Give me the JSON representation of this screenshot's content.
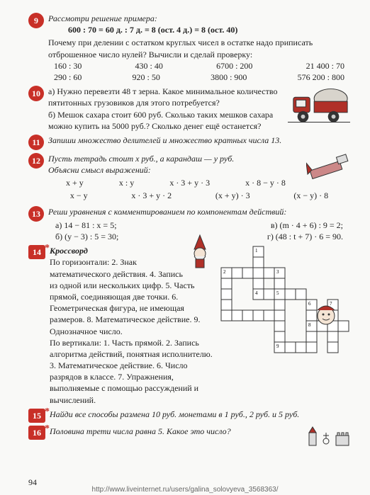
{
  "colors": {
    "badge": "#c83028",
    "ink": "#222",
    "paper": "#f9f9f7",
    "grid": "#333",
    "truckRed": "#b03028",
    "truckGrey": "#888"
  },
  "t9": {
    "title": "Рассмотри решение примера:",
    "line": "600 : 70 = 60 д. : 7 д. = 8 (ост. 4 д.) = 8 (ост. 40)",
    "q": "Почему при делении с остатком круглых чисел в остатке надо приписать отброшенное число нулей? Вычисли и сделай проверку:",
    "r1": [
      "160 : 30",
      "430 : 40",
      "6700 : 200",
      "21 400 : 70"
    ],
    "r2": [
      "290 : 60",
      "920 : 50",
      "3800 : 900",
      "576 200 : 800"
    ]
  },
  "t10": {
    "a": "а) Нужно перевезти 48 т зерна. Какое минимальное количество пятитонных грузовиков для этого потребуется?",
    "b": "б) Мешок сахара стоит 600 руб. Сколько таких мешков сахара можно купить на 5000 руб.? Сколько денег ещё останется?"
  },
  "t11": "Запиши множество делителей и множество кратных числа 13.",
  "t12": {
    "p1": "Пусть тетрадь стоит x руб., а карандаш — y руб.",
    "p2": "Объясни смысл выражений:",
    "e1": [
      "x + y",
      "x : y",
      "x · 3 + y · 3",
      "x · 8 − y · 8"
    ],
    "e2": [
      "x − y",
      "x · 3 + y · 2",
      "(x + y) · 3",
      "(x − y) · 8"
    ]
  },
  "t13": {
    "h": "Реши уравнения с комментированием по компонентам действий:",
    "a": "а)  14 − 81 : x = 5;",
    "b": "в)  (m · 4 + 6) : 9 = 2;",
    "c": "б)  (y − 3) : 5 = 30;",
    "d": "г)  (48 : t + 7) · 6 = 90."
  },
  "t14": {
    "h": "Кроссворд",
    "hor": "По горизонтали: 2. Знак математического действия. 4. Запись из одной или нескольких цифр. 5. Часть прямой, соединяющая две точки. 6. Геометрическая фигура, не имеющая размеров. 8. Математическое действие. 9. Однозначное число.",
    "ver": "По вертикали: 1. Часть прямой. 2. Запись алгоритма действий, понятная исполнителю. 3. Математическое действие. 6. Число разрядов в классе. 7. Упражнения, выполняемые с помощью рассуждений и вычислений."
  },
  "t15": "Найди все способы размена 10 руб. монетами в 1 руб., 2 руб. и 5 руб.",
  "t16": "Половина трети числа равна 5. Какое это число?",
  "page": "94",
  "url": "http://www.liveinternet.ru/users/galina_solovyeva_3568363/",
  "crossword": {
    "cell": 15,
    "rows": 10,
    "cols": 12,
    "filled": [
      [
        0,
        3
      ],
      [
        1,
        3
      ],
      [
        2,
        0
      ],
      [
        2,
        1
      ],
      [
        2,
        2
      ],
      [
        2,
        3
      ],
      [
        2,
        4
      ],
      [
        2,
        5
      ],
      [
        3,
        0
      ],
      [
        3,
        3
      ],
      [
        3,
        5
      ],
      [
        4,
        0
      ],
      [
        4,
        3
      ],
      [
        4,
        4
      ],
      [
        4,
        5
      ],
      [
        4,
        6
      ],
      [
        4,
        7
      ],
      [
        5,
        0
      ],
      [
        5,
        5
      ],
      [
        5,
        8
      ],
      [
        5,
        10
      ],
      [
        6,
        0
      ],
      [
        6,
        1
      ],
      [
        6,
        2
      ],
      [
        6,
        3
      ],
      [
        6,
        4
      ],
      [
        6,
        5
      ],
      [
        6,
        8
      ],
      [
        6,
        10
      ],
      [
        7,
        5
      ],
      [
        7,
        8
      ],
      [
        7,
        9
      ],
      [
        7,
        10
      ],
      [
        7,
        11
      ],
      [
        8,
        5
      ],
      [
        8,
        8
      ],
      [
        8,
        10
      ],
      [
        9,
        5
      ],
      [
        9,
        6
      ],
      [
        9,
        7
      ],
      [
        9,
        8
      ],
      [
        9,
        10
      ]
    ],
    "nums": {
      "0,3": "1",
      "2,0": "2",
      "2,5": "3",
      "4,3": "4",
      "4,5": "5",
      "5,8": "6",
      "5,10": "7",
      "7,8": "8",
      "9,5": "9"
    }
  }
}
